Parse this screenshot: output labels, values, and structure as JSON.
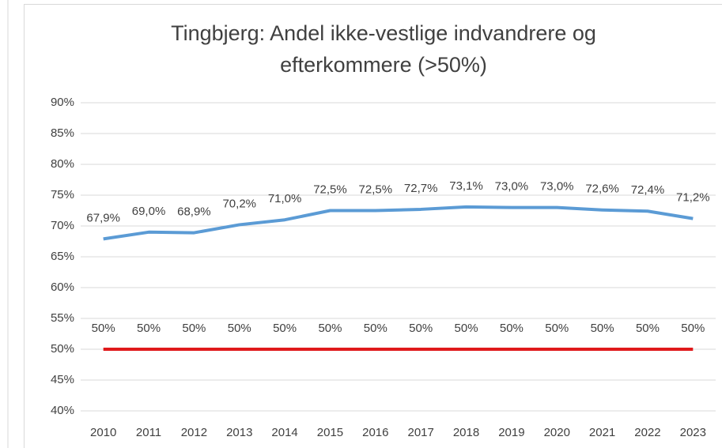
{
  "chart_data": {
    "type": "line",
    "title": "Tingbjerg: Andel ikke-vestlige indvandrere og efterkommere (>50%)",
    "categories": [
      "2010",
      "2011",
      "2012",
      "2013",
      "2014",
      "2015",
      "2016",
      "2017",
      "2018",
      "2019",
      "2020",
      "2021",
      "2022",
      "2023"
    ],
    "series": [
      {
        "color": "#5b9bd5",
        "values": [
          67.9,
          69.0,
          68.9,
          70.2,
          71.0,
          72.5,
          72.5,
          72.7,
          73.1,
          73.0,
          73.0,
          72.6,
          72.4,
          71.2
        ],
        "value_labels": [
          "67,9%",
          "69,0%",
          "68,9%",
          "70,2%",
          "71,0%",
          "72,5%",
          "72,5%",
          "72,7%",
          "73,1%",
          "73,0%",
          "73,0%",
          "72,6%",
          "72,4%",
          "71,2%"
        ]
      },
      {
        "color": "#e0191b",
        "values": [
          50,
          50,
          50,
          50,
          50,
          50,
          50,
          50,
          50,
          50,
          50,
          50,
          50,
          50
        ],
        "value_labels": [
          "50%",
          "50%",
          "50%",
          "50%",
          "50%",
          "50%",
          "50%",
          "50%",
          "50%",
          "50%",
          "50%",
          "50%",
          "50%",
          "50%"
        ]
      }
    ],
    "ylim": [
      40,
      90
    ],
    "yticks": [
      {
        "value": 40,
        "label": "40%"
      },
      {
        "value": 45,
        "label": "45%"
      },
      {
        "value": 50,
        "label": "50%"
      },
      {
        "value": 55,
        "label": "55%"
      },
      {
        "value": 60,
        "label": "60%"
      },
      {
        "value": 65,
        "label": "65%"
      },
      {
        "value": 70,
        "label": "70%"
      },
      {
        "value": 75,
        "label": "75%"
      },
      {
        "value": 80,
        "label": "80%"
      },
      {
        "value": 85,
        "label": "85%"
      },
      {
        "value": 90,
        "label": "90%"
      }
    ],
    "grid": true
  }
}
